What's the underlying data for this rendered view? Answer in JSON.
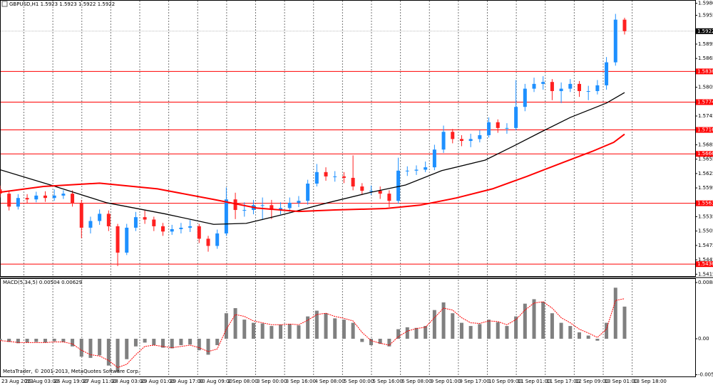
{
  "chart_data": [
    {
      "type": "candlestick",
      "title": "GBPUSD,H1  1.5923 1.5923 1.5922 1.5922",
      "x": [
        0,
        5,
        10,
        15,
        20,
        25,
        30,
        35,
        40,
        45,
        50,
        55,
        60,
        65,
        70,
        75,
        80,
        85,
        90,
        95,
        100,
        105,
        110,
        115,
        120,
        125,
        130,
        135,
        140,
        145,
        150,
        155,
        160,
        165,
        170,
        175,
        180,
        185,
        190,
        195,
        200,
        205,
        210,
        215,
        220,
        225,
        230,
        235,
        240,
        245,
        250,
        255,
        260,
        265,
        270,
        275,
        280,
        285,
        290,
        295,
        300,
        305,
        310,
        315,
        320,
        325,
        330,
        335,
        340,
        345
      ],
      "open": [
        1.5592,
        1.5583,
        1.5556,
        1.5574,
        1.5571,
        1.5579,
        1.5574,
        1.5579,
        1.5583,
        1.5564,
        1.5512,
        1.5526,
        1.5541,
        1.5515,
        1.546,
        1.5512,
        1.5534,
        1.5529,
        1.5515,
        1.5504,
        1.5509,
        1.5512,
        1.5515,
        1.5489,
        1.5474,
        1.55,
        1.5571,
        1.5549,
        1.5549,
        1.5559,
        1.5559,
        1.5549,
        1.5553,
        1.5564,
        1.5568,
        1.5604,
        1.5628,
        1.5619,
        1.5619,
        1.5616,
        1.5598,
        1.5589,
        1.5589,
        1.5583,
        1.5568,
        1.5631,
        1.5631,
        1.5633,
        1.5638,
        1.5675,
        1.5712,
        1.5697,
        1.5693,
        1.5697,
        1.5705,
        1.5732,
        1.572,
        1.572,
        1.5764,
        1.5802,
        1.5812,
        1.5816,
        1.5797,
        1.5802,
        1.5812,
        1.5797,
        1.5797,
        1.5809,
        1.5857,
        1.5946
      ],
      "high": [
        1.56,
        1.559,
        1.5582,
        1.5582,
        1.5587,
        1.5588,
        1.5592,
        1.559,
        1.559,
        1.557,
        1.5535,
        1.555,
        1.5548,
        1.552,
        1.552,
        1.5545,
        1.5548,
        1.5535,
        1.5522,
        1.5518,
        1.5522,
        1.5528,
        1.552,
        1.5495,
        1.5508,
        1.5596,
        1.5585,
        1.5565,
        1.557,
        1.5575,
        1.557,
        1.5565,
        1.5575,
        1.5578,
        1.5612,
        1.5645,
        1.5638,
        1.563,
        1.5628,
        1.5663,
        1.5605,
        1.56,
        1.5598,
        1.559,
        1.5658,
        1.564,
        1.5642,
        1.565,
        1.5685,
        1.5725,
        1.5718,
        1.5705,
        1.5708,
        1.5715,
        1.5742,
        1.5738,
        1.573,
        1.582,
        1.5812,
        1.5825,
        1.5828,
        1.5822,
        1.5815,
        1.5822,
        1.5818,
        1.5808,
        1.582,
        1.5868,
        1.5958,
        1.595
      ],
      "low": [
        1.5575,
        1.5548,
        1.555,
        1.5563,
        1.5565,
        1.5566,
        1.5568,
        1.5572,
        1.5556,
        1.549,
        1.55,
        1.5518,
        1.5505,
        1.5432,
        1.5455,
        1.5505,
        1.552,
        1.5505,
        1.5495,
        1.5497,
        1.55,
        1.5503,
        1.548,
        1.5462,
        1.5468,
        1.5495,
        1.553,
        1.5535,
        1.554,
        1.5528,
        1.553,
        1.554,
        1.5545,
        1.5555,
        1.556,
        1.5598,
        1.561,
        1.5608,
        1.5605,
        1.559,
        1.558,
        1.558,
        1.5572,
        1.5555,
        1.5562,
        1.562,
        1.5622,
        1.5628,
        1.5632,
        1.5668,
        1.5688,
        1.5682,
        1.568,
        1.569,
        1.57,
        1.571,
        1.5708,
        1.5715,
        1.5755,
        1.5795,
        1.58,
        1.5778,
        1.5772,
        1.5795,
        1.5785,
        1.5778,
        1.579,
        1.58,
        1.585,
        1.5915
      ],
      "close": [
        1.5583,
        1.5556,
        1.5574,
        1.5571,
        1.5579,
        1.5574,
        1.5579,
        1.5583,
        1.5564,
        1.5512,
        1.5526,
        1.5541,
        1.5515,
        1.546,
        1.5512,
        1.5534,
        1.5529,
        1.5515,
        1.5504,
        1.5509,
        1.5512,
        1.5515,
        1.5489,
        1.5474,
        1.55,
        1.5571,
        1.5549,
        1.5549,
        1.5559,
        1.5559,
        1.5549,
        1.5553,
        1.5564,
        1.5568,
        1.5604,
        1.5628,
        1.5619,
        1.5619,
        1.5616,
        1.5598,
        1.5589,
        1.5589,
        1.5583,
        1.5568,
        1.5631,
        1.5631,
        1.5633,
        1.5638,
        1.5675,
        1.5712,
        1.5697,
        1.5693,
        1.5697,
        1.5705,
        1.5732,
        1.572,
        1.572,
        1.5764,
        1.5802,
        1.5812,
        1.5816,
        1.5797,
        1.5802,
        1.5812,
        1.5797,
        1.5797,
        1.5809,
        1.5857,
        1.5946,
        1.5922
      ],
      "up_color": "#1e90ff",
      "down_color": "#ff2020",
      "series": [
        {
          "color": "#000000",
          "x": [
            0,
            28,
            59,
            91,
            118,
            136,
            158,
            181,
            205,
            224,
            244,
            268,
            284,
            299,
            315,
            335,
            345
          ],
          "values": [
            1.5633,
            1.5601,
            1.5564,
            1.5541,
            1.5519,
            1.5521,
            1.5541,
            1.5564,
            1.5586,
            1.5601,
            1.5631,
            1.5653,
            1.5683,
            1.5712,
            1.5742,
            1.5772,
            1.5794
          ]
        },
        {
          "color": "#ff0000",
          "x": [
            0,
            24,
            55,
            87,
            118,
            142,
            165,
            185,
            213,
            232,
            252,
            272,
            291,
            311,
            327,
            339,
            345
          ],
          "values": [
            1.5586,
            1.5598,
            1.5605,
            1.5593,
            1.5571,
            1.5553,
            1.5546,
            1.5549,
            1.5552,
            1.5559,
            1.5574,
            1.5593,
            1.5619,
            1.5648,
            1.5671,
            1.569,
            1.5707
          ]
        }
      ],
      "levels": [
        1.5838,
        1.5774,
        1.5716,
        1.5666,
        1.5563,
        1.5436
      ],
      "level_color": "#ff0000",
      "current_price": 1.5922,
      "xlim": [
        0,
        384
      ],
      "xticks": [
        {
          "value": 0,
          "label": "23 Aug 2013"
        },
        {
          "value": 13,
          "label": "26 Aug 03:00"
        },
        {
          "value": 29,
          "label": "26 Aug 19:00"
        },
        {
          "value": 45,
          "label": "27 Aug 11:00"
        },
        {
          "value": 61,
          "label": "28 Aug 03:00"
        },
        {
          "value": 77,
          "label": "29 Aug 01:00"
        },
        {
          "value": 93,
          "label": "29 Aug 17:00"
        },
        {
          "value": 109,
          "label": "30 Aug 09:00"
        },
        {
          "value": 125,
          "label": "2 Sep 08:00"
        },
        {
          "value": 141,
          "label": "3 Sep 00:00"
        },
        {
          "value": 157,
          "label": "3 Sep 16:00"
        },
        {
          "value": 173,
          "label": "4 Sep 08:00"
        },
        {
          "value": 189,
          "label": "5 Sep 00:00"
        },
        {
          "value": 205,
          "label": "5 Sep 16:00"
        },
        {
          "value": 221,
          "label": "6 Sep 08:00"
        },
        {
          "value": 237,
          "label": "9 Sep 01:00"
        },
        {
          "value": 253,
          "label": "9 Sep 17:00"
        },
        {
          "value": 269,
          "label": "10 Sep 09:00"
        },
        {
          "value": 285,
          "label": "11 Sep 01:00"
        },
        {
          "value": 301,
          "label": "11 Sep 17:00"
        },
        {
          "value": 317,
          "label": "12 Sep 09:00"
        },
        {
          "value": 333,
          "label": "13 Sep 01:00"
        },
        {
          "value": 349,
          "label": "13 Sep 18:00"
        }
      ],
      "grid": true,
      "ylim": [
        1.5411,
        1.5987
      ],
      "yticks": [
        {
          "value": 1.598,
          "label": "1.5980"
        },
        1.5955,
        1.5895,
        1.5865,
        1.5805,
        1.5745,
        1.5685,
        1.5655,
        1.5625,
        1.5595,
        1.5535,
        1.5505,
        1.5475,
        1.5445,
        1.5415
      ]
    },
    {
      "type": "macd",
      "title": "MACD(5,34,5) 0.00504 0.00629",
      "values": [
        -0.0003,
        -0.0005,
        -0.0007,
        -0.0006,
        -0.0005,
        -0.0006,
        -0.0004,
        -0.0005,
        -0.0012,
        -0.0028,
        -0.003,
        -0.0026,
        -0.0042,
        -0.0052,
        -0.0032,
        -0.0012,
        -0.0006,
        -0.001,
        -0.0014,
        -0.0015,
        -0.001,
        -0.0009,
        -0.0018,
        -0.0025,
        -0.001,
        0.004,
        0.0048,
        0.003,
        0.0025,
        0.0024,
        0.002,
        0.0022,
        0.0023,
        0.0021,
        0.0035,
        0.0044,
        0.004,
        0.0032,
        0.003,
        0.0025,
        -0.0005,
        -0.001,
        -0.0008,
        -0.0012,
        0.0015,
        0.0018,
        0.0017,
        0.002,
        0.0045,
        0.0057,
        0.004,
        0.0025,
        0.002,
        0.0023,
        0.003,
        0.0026,
        0.002,
        0.0035,
        0.0055,
        0.0062,
        0.0058,
        0.004,
        0.0025,
        0.002,
        0.001,
        0.0005,
        -0.0003,
        0.0025,
        0.008,
        0.00504
      ],
      "signal": [
        -0.0003,
        -0.0004,
        -0.0006,
        -0.0006,
        -0.0006,
        -0.0006,
        -0.0005,
        -0.0005,
        -0.0008,
        -0.0018,
        -0.0025,
        -0.0027,
        -0.0034,
        -0.0045,
        -0.004,
        -0.0025,
        -0.0012,
        -0.001,
        -0.0012,
        -0.0014,
        -0.0012,
        -0.001,
        -0.0014,
        -0.002,
        -0.0016,
        0.0015,
        0.0038,
        0.0035,
        0.0028,
        0.0025,
        0.0022,
        0.0022,
        0.0023,
        0.0022,
        0.0029,
        0.0038,
        0.004,
        0.0035,
        0.0032,
        0.0028,
        0.001,
        -0.0003,
        -0.0007,
        -0.001,
        0.0003,
        0.0012,
        0.0016,
        0.0018,
        0.0033,
        0.0048,
        0.0045,
        0.0033,
        0.0025,
        0.0024,
        0.0028,
        0.0027,
        0.0022,
        0.003,
        0.0045,
        0.0056,
        0.0058,
        0.0048,
        0.0033,
        0.0025,
        0.0015,
        0.0009,
        0.0002,
        0.0015,
        0.006,
        0.00629
      ],
      "color": "#808080",
      "signal_color": "#ff0000",
      "ylim": [
        -0.00602,
        0.00937
      ],
      "yticks": [
        0.00881,
        {
          "value": 0,
          "label": "0.00"
        },
        -0.00564
      ],
      "footer": "MetaTrader, © 2001-2013, MetaQuotes Software Corp."
    }
  ]
}
